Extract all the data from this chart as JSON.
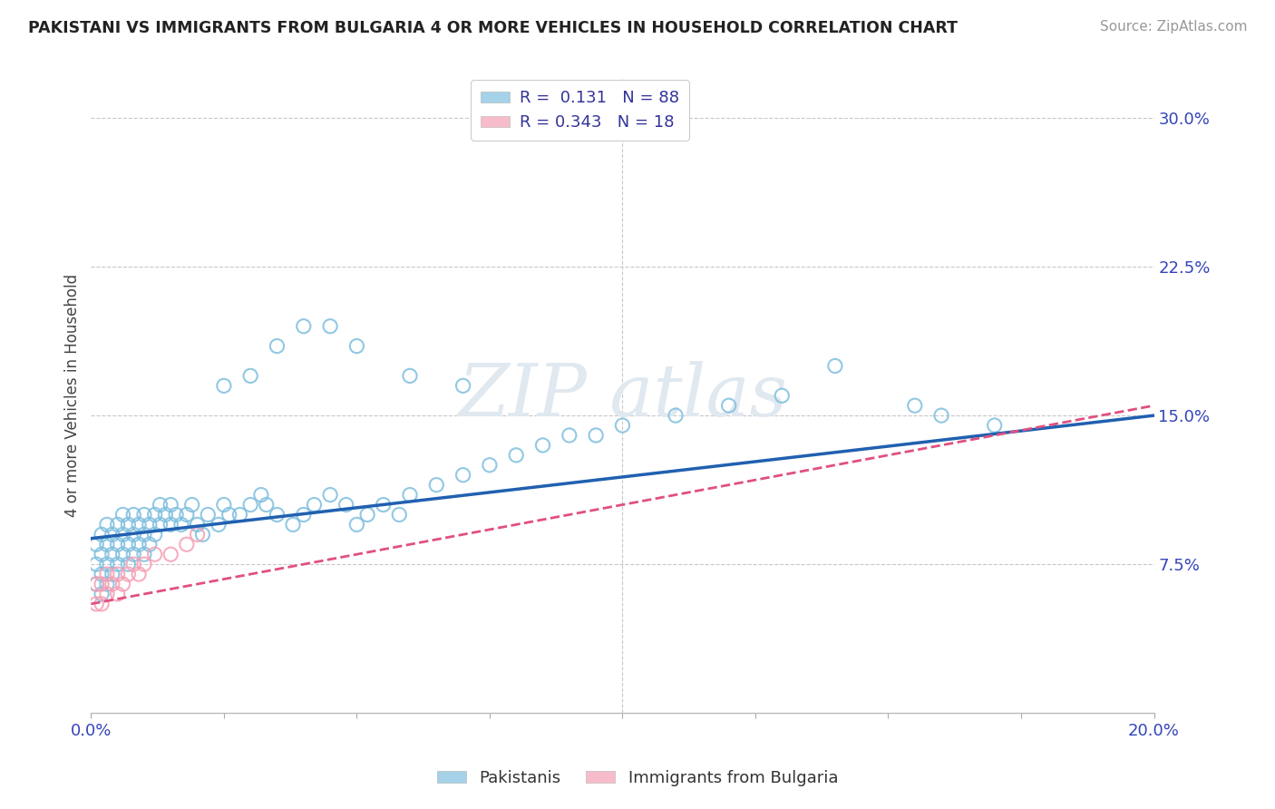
{
  "title": "PAKISTANI VS IMMIGRANTS FROM BULGARIA 4 OR MORE VEHICLES IN HOUSEHOLD CORRELATION CHART",
  "source": "Source: ZipAtlas.com",
  "ylabel": "4 or more Vehicles in Household",
  "xlim": [
    0.0,
    0.2
  ],
  "ylim": [
    0.0,
    0.32
  ],
  "xticks": [
    0.0,
    0.025,
    0.05,
    0.075,
    0.1,
    0.125,
    0.15,
    0.175,
    0.2
  ],
  "xticklabels": [
    "0.0%",
    "",
    "",
    "",
    "",
    "",
    "",
    "",
    "20.0%"
  ],
  "yticks": [
    0.0,
    0.075,
    0.15,
    0.225,
    0.3
  ],
  "yticklabels": [
    "",
    "7.5%",
    "15.0%",
    "22.5%",
    "30.0%"
  ],
  "legend1_R": "0.131",
  "legend1_N": "88",
  "legend2_R": "0.343",
  "legend2_N": "18",
  "color_blue": "#7fbfdf",
  "color_pink": "#f4a0b5",
  "color_blue_line": "#2060b0",
  "color_pink_line": "#e05080",
  "background": "#ffffff",
  "grid_color": "#c8c8c8",
  "pak_x": [
    0.001,
    0.001,
    0.001,
    0.002,
    0.002,
    0.002,
    0.002,
    0.003,
    0.003,
    0.003,
    0.003,
    0.004,
    0.004,
    0.004,
    0.005,
    0.005,
    0.005,
    0.006,
    0.006,
    0.006,
    0.007,
    0.007,
    0.007,
    0.008,
    0.008,
    0.008,
    0.009,
    0.009,
    0.01,
    0.01,
    0.01,
    0.011,
    0.011,
    0.012,
    0.012,
    0.013,
    0.013,
    0.014,
    0.015,
    0.015,
    0.016,
    0.017,
    0.018,
    0.019,
    0.02,
    0.021,
    0.022,
    0.024,
    0.025,
    0.026,
    0.028,
    0.03,
    0.032,
    0.033,
    0.035,
    0.038,
    0.04,
    0.042,
    0.045,
    0.048,
    0.05,
    0.052,
    0.055,
    0.058,
    0.06,
    0.065,
    0.07,
    0.075,
    0.08,
    0.085,
    0.09,
    0.095,
    0.1,
    0.11,
    0.12,
    0.13,
    0.14,
    0.155,
    0.16,
    0.17,
    0.025,
    0.03,
    0.035,
    0.04,
    0.045,
    0.05,
    0.06,
    0.07
  ],
  "pak_y": [
    0.075,
    0.085,
    0.065,
    0.07,
    0.08,
    0.09,
    0.06,
    0.065,
    0.075,
    0.085,
    0.095,
    0.08,
    0.09,
    0.07,
    0.085,
    0.095,
    0.075,
    0.08,
    0.09,
    0.1,
    0.085,
    0.095,
    0.075,
    0.09,
    0.1,
    0.08,
    0.095,
    0.085,
    0.09,
    0.1,
    0.08,
    0.095,
    0.085,
    0.09,
    0.1,
    0.095,
    0.105,
    0.1,
    0.105,
    0.095,
    0.1,
    0.095,
    0.1,
    0.105,
    0.095,
    0.09,
    0.1,
    0.095,
    0.105,
    0.1,
    0.1,
    0.105,
    0.11,
    0.105,
    0.1,
    0.095,
    0.1,
    0.105,
    0.11,
    0.105,
    0.095,
    0.1,
    0.105,
    0.1,
    0.11,
    0.115,
    0.12,
    0.125,
    0.13,
    0.135,
    0.14,
    0.14,
    0.145,
    0.15,
    0.155,
    0.16,
    0.175,
    0.155,
    0.15,
    0.145,
    0.165,
    0.17,
    0.185,
    0.195,
    0.195,
    0.185,
    0.17,
    0.165
  ],
  "bul_x": [
    0.001,
    0.001,
    0.002,
    0.002,
    0.003,
    0.003,
    0.004,
    0.005,
    0.005,
    0.006,
    0.007,
    0.008,
    0.009,
    0.01,
    0.012,
    0.015,
    0.018,
    0.02
  ],
  "bul_y": [
    0.055,
    0.065,
    0.055,
    0.065,
    0.06,
    0.07,
    0.065,
    0.06,
    0.07,
    0.065,
    0.07,
    0.075,
    0.07,
    0.075,
    0.08,
    0.08,
    0.085,
    0.09
  ]
}
